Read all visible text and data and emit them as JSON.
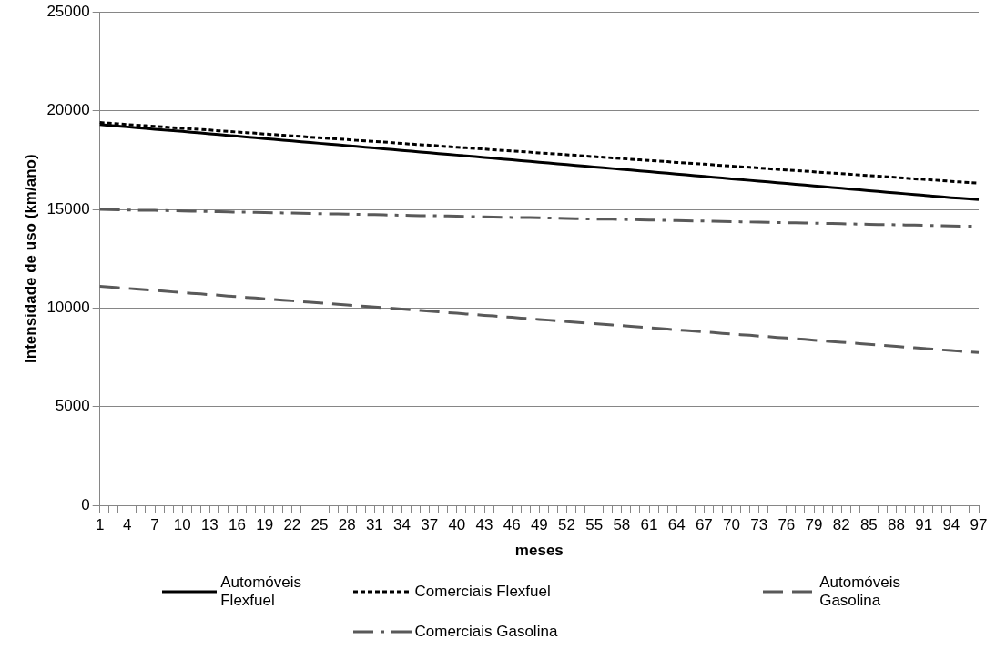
{
  "chart_data": {
    "type": "line",
    "xlabel": "meses",
    "ylabel": "Intensidade de uso (km/ano)",
    "categories": [
      "1",
      null,
      null,
      "4",
      null,
      null,
      "7",
      null,
      null,
      "10",
      null,
      null,
      "13",
      null,
      null,
      "16",
      null,
      null,
      "19",
      null,
      null,
      "22",
      null,
      null,
      "25",
      null,
      null,
      "28",
      null,
      null,
      "31",
      null,
      null,
      "34",
      null,
      null,
      "37",
      null,
      null,
      "40",
      null,
      null,
      "43",
      null,
      null,
      "46",
      null,
      null,
      "49",
      null,
      null,
      "52",
      null,
      null,
      "55",
      null,
      null,
      "58",
      null,
      null,
      "61",
      null,
      null,
      "64",
      null,
      null,
      "67",
      null,
      null,
      "70",
      null,
      null,
      "73",
      null,
      null,
      "76",
      null,
      null,
      "79",
      null,
      null,
      "82",
      null,
      null,
      "85",
      null,
      null,
      "88",
      null,
      null,
      "91",
      null,
      null,
      "94",
      null,
      null,
      "97"
    ],
    "ylim": [
      0,
      25000
    ],
    "yticks": [
      0,
      5000,
      10000,
      15000,
      20000,
      25000
    ],
    "grid": "y",
    "legend": "bottom",
    "marker": "none",
    "series": [
      {
        "name": "Automóveis Flexfuel",
        "color": "#000000",
        "line_style": "solid",
        "values": [
          19300,
          19260,
          19220,
          19180,
          19140,
          19100,
          19060,
          19020,
          18990,
          18950,
          18910,
          18870,
          18830,
          18790,
          18750,
          18710,
          18670,
          18630,
          18590,
          18550,
          18510,
          18470,
          18430,
          18390,
          18350,
          18310,
          18270,
          18230,
          18190,
          18150,
          18110,
          18070,
          18030,
          17990,
          17950,
          17910,
          17870,
          17830,
          17790,
          17750,
          17710,
          17670,
          17630,
          17590,
          17550,
          17510,
          17470,
          17430,
          17390,
          17350,
          17310,
          17270,
          17230,
          17190,
          17150,
          17110,
          17070,
          17030,
          16990,
          16950,
          16910,
          16870,
          16830,
          16790,
          16750,
          16710,
          16670,
          16630,
          16590,
          16550,
          16510,
          16470,
          16430,
          16390,
          16350,
          16310,
          16270,
          16230,
          16190,
          16150,
          16110,
          16070,
          16030,
          15990,
          15950,
          15910,
          15870,
          15830,
          15790,
          15750,
          15710,
          15670,
          15630,
          15590,
          15560,
          15530,
          15500
        ]
      },
      {
        "name": "Comerciais Flexfuel",
        "color": "#000000",
        "line_style": "dotted",
        "values": [
          19400,
          19370,
          19340,
          19300,
          19270,
          19240,
          19210,
          19180,
          19140,
          19110,
          19080,
          19050,
          19020,
          18980,
          18950,
          18920,
          18890,
          18860,
          18820,
          18790,
          18760,
          18730,
          18700,
          18660,
          18630,
          18600,
          18570,
          18540,
          18500,
          18470,
          18440,
          18410,
          18380,
          18340,
          18310,
          18280,
          18250,
          18220,
          18180,
          18150,
          18120,
          18090,
          18060,
          18020,
          17990,
          17960,
          17930,
          17900,
          17860,
          17830,
          17800,
          17770,
          17740,
          17700,
          17670,
          17640,
          17610,
          17580,
          17540,
          17510,
          17480,
          17450,
          17420,
          17380,
          17350,
          17320,
          17290,
          17260,
          17220,
          17190,
          17160,
          17130,
          17100,
          17060,
          17030,
          17000,
          16970,
          16940,
          16900,
          16870,
          16840,
          16810,
          16780,
          16740,
          16710,
          16680,
          16650,
          16620,
          16580,
          16550,
          16520,
          16490,
          16460,
          16420,
          16390,
          16360,
          16330
        ]
      },
      {
        "name": "Automóveis Gasolina",
        "color": "#595959",
        "line_style": "dashed",
        "values": [
          11100,
          11070,
          11030,
          11000,
          10960,
          10930,
          10890,
          10860,
          10820,
          10790,
          10750,
          10720,
          10680,
          10650,
          10610,
          10580,
          10540,
          10510,
          10470,
          10440,
          10400,
          10370,
          10330,
          10300,
          10260,
          10230,
          10190,
          10160,
          10120,
          10090,
          10050,
          10020,
          9980,
          9950,
          9910,
          9880,
          9840,
          9810,
          9770,
          9740,
          9700,
          9670,
          9630,
          9600,
          9560,
          9530,
          9490,
          9460,
          9420,
          9390,
          9350,
          9320,
          9280,
          9250,
          9210,
          9180,
          9140,
          9110,
          9070,
          9040,
          9000,
          8970,
          8930,
          8900,
          8860,
          8830,
          8790,
          8760,
          8720,
          8690,
          8650,
          8620,
          8580,
          8550,
          8510,
          8480,
          8440,
          8410,
          8370,
          8340,
          8300,
          8270,
          8230,
          8200,
          8160,
          8130,
          8090,
          8060,
          8020,
          7990,
          7950,
          7920,
          7880,
          7850,
          7810,
          7780,
          7750
        ]
      },
      {
        "name": "Comerciais Gasolina",
        "color": "#595959",
        "line_style": "dashdot",
        "values": [
          15000,
          14990,
          14980,
          14970,
          14960,
          14950,
          14950,
          14940,
          14930,
          14920,
          14910,
          14900,
          14890,
          14880,
          14870,
          14860,
          14860,
          14850,
          14840,
          14830,
          14820,
          14810,
          14800,
          14790,
          14780,
          14770,
          14770,
          14760,
          14750,
          14740,
          14730,
          14720,
          14710,
          14700,
          14690,
          14680,
          14680,
          14670,
          14660,
          14650,
          14640,
          14630,
          14620,
          14610,
          14600,
          14590,
          14590,
          14580,
          14570,
          14560,
          14550,
          14540,
          14530,
          14520,
          14510,
          14500,
          14500,
          14490,
          14480,
          14470,
          14460,
          14450,
          14440,
          14430,
          14420,
          14410,
          14410,
          14400,
          14390,
          14380,
          14370,
          14360,
          14350,
          14340,
          14330,
          14320,
          14320,
          14310,
          14300,
          14290,
          14280,
          14270,
          14260,
          14250,
          14240,
          14230,
          14230,
          14220,
          14210,
          14200,
          14190,
          14180,
          14170,
          14160,
          14150,
          14150,
          14140
        ]
      }
    ]
  }
}
